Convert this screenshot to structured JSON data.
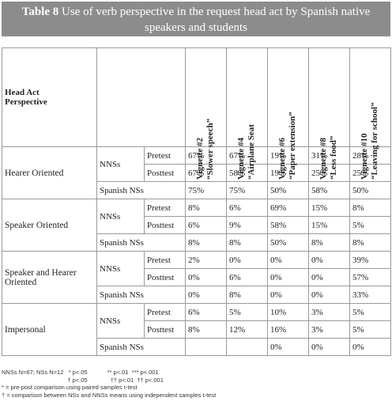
{
  "title_bold": "Table 8",
  "title_rest": " Use of verb perspective in the request head act by Spanish native speakers and students",
  "header": {
    "col0": "Head Act",
    "col0b": "Perspective",
    "vignettes": [
      {
        "num": "Vignette #2",
        "name": "“Slower speech”"
      },
      {
        "num": "Vignette #4",
        "name": "“Airplane Seat"
      },
      {
        "num": "Vignette #6",
        "name": "“Paper extension”"
      },
      {
        "num": "Vignette #8",
        "name": "“Less food”"
      },
      {
        "num": "Vignette #10",
        "name": "“Leaving for school”"
      }
    ]
  },
  "groups": [
    {
      "label": "Hearer Oriented",
      "nns": "NNSs",
      "pre": [
        "67%",
        "67%",
        "19%",
        "31%",
        "28%"
      ],
      "post": [
        "67%",
        "58%",
        "19%",
        "25%",
        "25%"
      ],
      "spanish": [
        "75%",
        "75%",
        "50%",
        "58%",
        "50%"
      ]
    },
    {
      "label": "Speaker Oriented",
      "nns": "NNSs",
      "pre": [
        "8%",
        "6%",
        "69%",
        "15%",
        "8%"
      ],
      "post": [
        "6%",
        "9%",
        "58%",
        "15%",
        "5%"
      ],
      "spanish": [
        "8%",
        "8%",
        "50%",
        "8%",
        "8%"
      ]
    },
    {
      "label": "Speaker and Hearer Oriented",
      "nns": "NNSs",
      "pre": [
        "2%",
        "0%",
        "0%",
        "0%",
        "39%"
      ],
      "post": [
        "0%",
        "6%",
        "0%",
        "0%",
        "57%"
      ],
      "spanish": [
        "0%",
        "8%",
        "0%",
        "0%",
        "33%"
      ]
    },
    {
      "label": "Impersonal",
      "nns": "NNSs",
      "pre": [
        "6%",
        "5%",
        "10%",
        "3%",
        "5%"
      ],
      "post": [
        "8%",
        "12%",
        "16%",
        "3%",
        "5%"
      ],
      "spanish": [
        "",
        "",
        "0%",
        "0%",
        "0%"
      ]
    }
  ],
  "labels": {
    "pretest": "Pretest",
    "posttest": "Posttest",
    "spanish": "Spanish NSs"
  },
  "footer": {
    "line1": "NNSs N=67; NSs N=12   * p<.05            ** p<.01  *** p<.001",
    "line2": "                                        † p<.05              †† p<.01  †† p<.001",
    "line3": "* = pre-post comparison using paired samples t-test",
    "line4": "† = comparison between NSs and NNSs means using independent samples t-test"
  }
}
